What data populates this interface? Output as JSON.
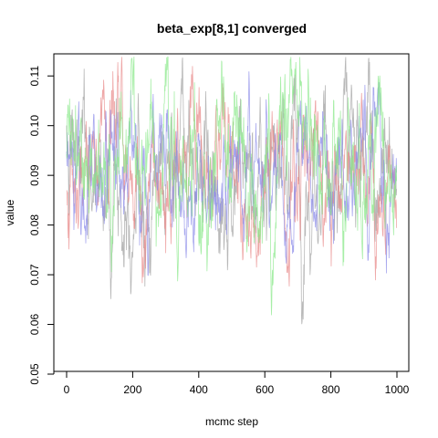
{
  "chart_data": {
    "type": "line",
    "title": "beta_exp[8,1] converged",
    "xlabel": "mcmc step",
    "ylabel": "value",
    "xlim": [
      0,
      1000
    ],
    "ylim": [
      0.05,
      0.115
    ],
    "x_ticks": [
      0,
      200,
      400,
      600,
      800,
      1000
    ],
    "y_ticks": [
      0.05,
      0.06,
      0.07,
      0.08,
      0.09,
      0.1,
      0.11
    ],
    "y_tick_labels": [
      "0.05",
      "0.06",
      "0.07",
      "0.08",
      "0.09",
      "0.10",
      "0.11"
    ],
    "grid": false,
    "legend": "none",
    "n_steps": 1000,
    "series_style": [
      {
        "color": "#a0a0a0",
        "seed": 7,
        "mean": 0.09,
        "sd": 0.0085,
        "phi": 0.88
      },
      {
        "color": "#e88a8a",
        "seed": 19,
        "mean": 0.0905,
        "sd": 0.008,
        "phi": 0.88
      },
      {
        "color": "#8a8ae8",
        "seed": 31,
        "mean": 0.091,
        "sd": 0.007,
        "phi": 0.88
      },
      {
        "color": "#8ae88a",
        "seed": 43,
        "mean": 0.09,
        "sd": 0.0085,
        "phi": 0.88
      }
    ]
  }
}
